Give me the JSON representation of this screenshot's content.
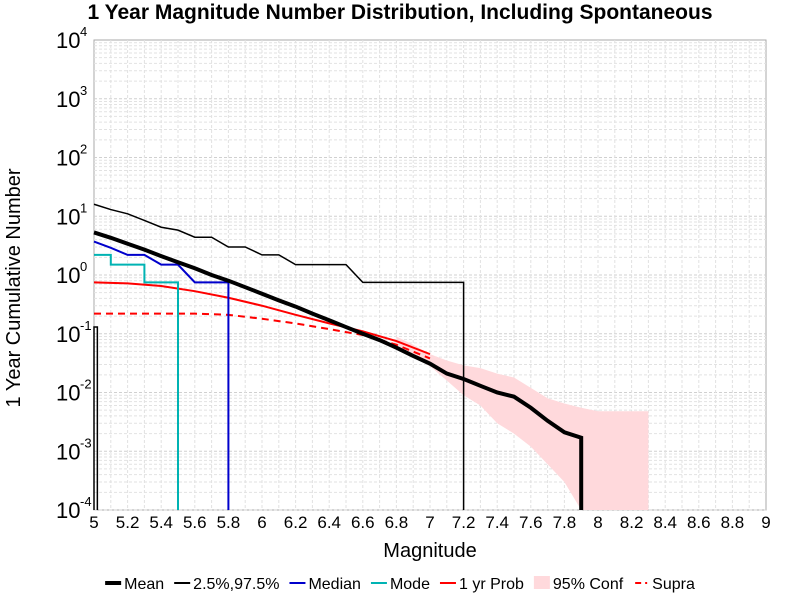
{
  "chart_data": {
    "type": "line",
    "title": "1 Year Magnitude Number Distribution, Including Spontaneous",
    "xlabel": "Magnitude",
    "ylabel": "1 Year Cumulative Number",
    "xlim": [
      5,
      9
    ],
    "ylim": [
      0.0001,
      10000
    ],
    "y_scale": "log",
    "grid": true,
    "legend_position": "bottom",
    "x_ticks": [
      "5",
      "5.2",
      "5.4",
      "5.6",
      "5.8",
      "6",
      "6.2",
      "6.4",
      "6.6",
      "6.8",
      "7",
      "7.2",
      "7.4",
      "7.6",
      "7.8",
      "8",
      "8.2",
      "8.4",
      "8.6",
      "8.8",
      "9"
    ],
    "y_ticks": [
      {
        "base": "10",
        "exp": "-4"
      },
      {
        "base": "10",
        "exp": "-3"
      },
      {
        "base": "10",
        "exp": "-2"
      },
      {
        "base": "10",
        "exp": "-1"
      },
      {
        "base": "10",
        "exp": "0"
      },
      {
        "base": "10",
        "exp": "1"
      },
      {
        "base": "10",
        "exp": "2"
      },
      {
        "base": "10",
        "exp": "3"
      },
      {
        "base": "10",
        "exp": "4"
      }
    ],
    "series": [
      {
        "name": "95% Conf",
        "kind": "band",
        "color": "#ffd9dc",
        "x": [
          6.8,
          6.9,
          7.0,
          7.1,
          7.2,
          7.3,
          7.4,
          7.5,
          7.6,
          7.7,
          7.8,
          7.9,
          8.0,
          8.1,
          8.2,
          8.3
        ],
        "lower": [
          0.06,
          0.04,
          0.028,
          0.016,
          0.009,
          0.006,
          0.003,
          0.002,
          0.0012,
          0.0006,
          0.0003,
          0.0001,
          0.0001,
          0.0001,
          0.0001,
          0.0001
        ],
        "upper": [
          0.09,
          0.065,
          0.045,
          0.035,
          0.029,
          0.026,
          0.021,
          0.018,
          0.012,
          0.008,
          0.0065,
          0.0055,
          0.0048,
          0.0048,
          0.0048,
          0.0048
        ]
      },
      {
        "name": "Supra",
        "kind": "line",
        "color": "#ff0000",
        "dash": true,
        "width": 2,
        "x": [
          5.0,
          5.2,
          5.4,
          5.6,
          5.8,
          6.0,
          6.2,
          6.4,
          6.6,
          6.8,
          7.0
        ],
        "y": [
          0.22,
          0.22,
          0.22,
          0.22,
          0.21,
          0.18,
          0.15,
          0.12,
          0.095,
          0.065,
          0.038
        ]
      },
      {
        "name": "1 yr Prob",
        "kind": "line",
        "color": "#ff0000",
        "width": 2,
        "x": [
          5.0,
          5.2,
          5.4,
          5.6,
          5.8,
          6.0,
          6.2,
          6.4,
          6.6,
          6.8,
          7.0
        ],
        "y": [
          0.75,
          0.72,
          0.65,
          0.53,
          0.41,
          0.3,
          0.21,
          0.15,
          0.11,
          0.075,
          0.045
        ]
      },
      {
        "name": "Mode",
        "kind": "line",
        "color": "#00b3b3",
        "width": 2,
        "x": [
          5.0,
          5.1,
          5.1,
          5.2,
          5.2,
          5.3,
          5.3,
          5.4,
          5.4,
          5.5,
          5.5
        ],
        "y": [
          2.2,
          2.2,
          1.5,
          1.5,
          1.5,
          1.5,
          0.75,
          0.75,
          0.75,
          0.75,
          0.0001
        ]
      },
      {
        "name": "Median",
        "kind": "line",
        "color": "#0000cc",
        "width": 2,
        "x": [
          5.0,
          5.1,
          5.2,
          5.3,
          5.4,
          5.5,
          5.6,
          5.7,
          5.8,
          5.8
        ],
        "y": [
          3.7,
          2.9,
          2.2,
          2.2,
          1.5,
          1.5,
          0.75,
          0.75,
          0.75,
          0.0001
        ]
      },
      {
        "name": "2.5%,97.5%",
        "kind": "line",
        "color": "#000000",
        "width": 1.5,
        "x": [
          5.0,
          5.1,
          5.2,
          5.3,
          5.4,
          5.5,
          5.6,
          5.7,
          5.8,
          5.9,
          6.0,
          6.1,
          6.2,
          6.3,
          6.4,
          6.5,
          6.6,
          6.7,
          6.8,
          6.9,
          7.0,
          7.1,
          7.2,
          7.2
        ],
        "y": [
          16,
          13,
          11,
          8.5,
          6.5,
          5.8,
          4.4,
          4.4,
          3.0,
          3.0,
          2.2,
          2.2,
          1.5,
          1.5,
          1.5,
          1.5,
          0.75,
          0.75,
          0.75,
          0.75,
          0.75,
          0.75,
          0.75,
          0.0001
        ]
      },
      {
        "name": "2.5%,97.5% lower",
        "kind": "line",
        "color": "#000000",
        "width": 1.5,
        "x": [
          5.0,
          5.0,
          5.02,
          5.02
        ],
        "y": [
          0.0001,
          0.13,
          0.13,
          0.0001
        ]
      },
      {
        "name": "Mean",
        "kind": "line",
        "color": "#000000",
        "width": 4,
        "x": [
          5.0,
          5.1,
          5.2,
          5.3,
          5.4,
          5.5,
          5.6,
          5.7,
          5.8,
          5.9,
          6.0,
          6.1,
          6.2,
          6.3,
          6.4,
          6.5,
          6.6,
          6.7,
          6.8,
          6.9,
          7.0,
          7.1,
          7.2,
          7.3,
          7.4,
          7.5,
          7.6,
          7.7,
          7.8,
          7.9,
          7.9
        ],
        "y": [
          5.3,
          4.3,
          3.4,
          2.7,
          2.1,
          1.65,
          1.3,
          1.0,
          0.8,
          0.62,
          0.48,
          0.37,
          0.29,
          0.22,
          0.17,
          0.13,
          0.1,
          0.078,
          0.058,
          0.042,
          0.031,
          0.021,
          0.017,
          0.013,
          0.01,
          0.0085,
          0.0055,
          0.0033,
          0.0021,
          0.0017,
          0.0001
        ]
      }
    ],
    "legend": [
      {
        "label": "Mean",
        "color": "#000000",
        "style": "thick"
      },
      {
        "label": "2.5%,97.5%",
        "color": "#000000",
        "style": "thin"
      },
      {
        "label": "Median",
        "color": "#0000cc",
        "style": "line"
      },
      {
        "label": "Mode",
        "color": "#00b3b3",
        "style": "line"
      },
      {
        "label": "1 yr Prob",
        "color": "#ff0000",
        "style": "line"
      },
      {
        "label": "95% Conf",
        "color": "#ffd9dc",
        "style": "box"
      },
      {
        "label": "Supra",
        "color": "#ff0000",
        "style": "dash"
      }
    ]
  }
}
